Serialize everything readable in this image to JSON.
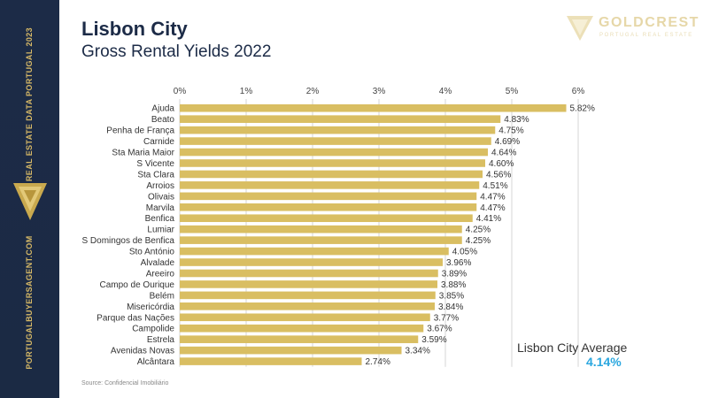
{
  "header": {
    "title": "Lisbon City",
    "subtitle": "Gross Rental Yields 2022"
  },
  "brand": {
    "name": "GOLDCREST",
    "tagline": "PORTUGAL REAL ESTATE",
    "logo_icon": "inverted-triangle-logo-icon",
    "color": "#e6d7a8"
  },
  "sidebar": {
    "top_text": "REAL ESTATE DATA PORTUGAL 2023",
    "bottom_text": "PORTUGALBUYERSAGENT.COM",
    "logo_icon": "gold-triangle-logo-icon",
    "background": "#1c2b47",
    "accent": "#d6b866"
  },
  "average": {
    "label": "Lisbon City Average",
    "value": "4.14%",
    "color": "#2aa7df"
  },
  "source": "Source: Confidencial Imobiliário",
  "chart_data": {
    "type": "bar",
    "orientation": "horizontal",
    "title": "Gross Rental Yields 2022",
    "xlim": [
      0,
      6
    ],
    "x_ticks": [
      "0%",
      "1%",
      "2%",
      "3%",
      "4%",
      "5%",
      "6%"
    ],
    "grid": true,
    "bar_color": "#d9be62",
    "categories": [
      "Ajuda",
      "Beato",
      "Penha de França",
      "Carnide",
      "Sta Maria Maior",
      "S Vicente",
      "Sta Clara",
      "Arroios",
      "Olivais",
      "Marvila",
      "Benfica",
      "Lumiar",
      "S Domingos de Benfica",
      "Sto António",
      "Alvalade",
      "Areeiro",
      "Campo de Ourique",
      "Belém",
      "Misericórdia",
      "Parque das Nações",
      "Campolide",
      "Estrela",
      "Avenidas Novas",
      "Alcântara"
    ],
    "values": [
      5.82,
      4.83,
      4.75,
      4.69,
      4.64,
      4.6,
      4.56,
      4.51,
      4.47,
      4.47,
      4.41,
      4.25,
      4.25,
      4.05,
      3.96,
      3.89,
      3.88,
      3.85,
      3.84,
      3.77,
      3.67,
      3.59,
      3.34,
      2.74
    ],
    "value_labels": [
      "5.82%",
      "4.83%",
      "4.75%",
      "4.69%",
      "4.64%",
      "4.60%",
      "4.56%",
      "4.51%",
      "4.47%",
      "4.47%",
      "4.41%",
      "4.25%",
      "4.25%",
      "4.05%",
      "3.96%",
      "3.89%",
      "3.88%",
      "3.85%",
      "3.84%",
      "3.77%",
      "3.67%",
      "3.59%",
      "3.34%",
      "2.74%"
    ]
  }
}
